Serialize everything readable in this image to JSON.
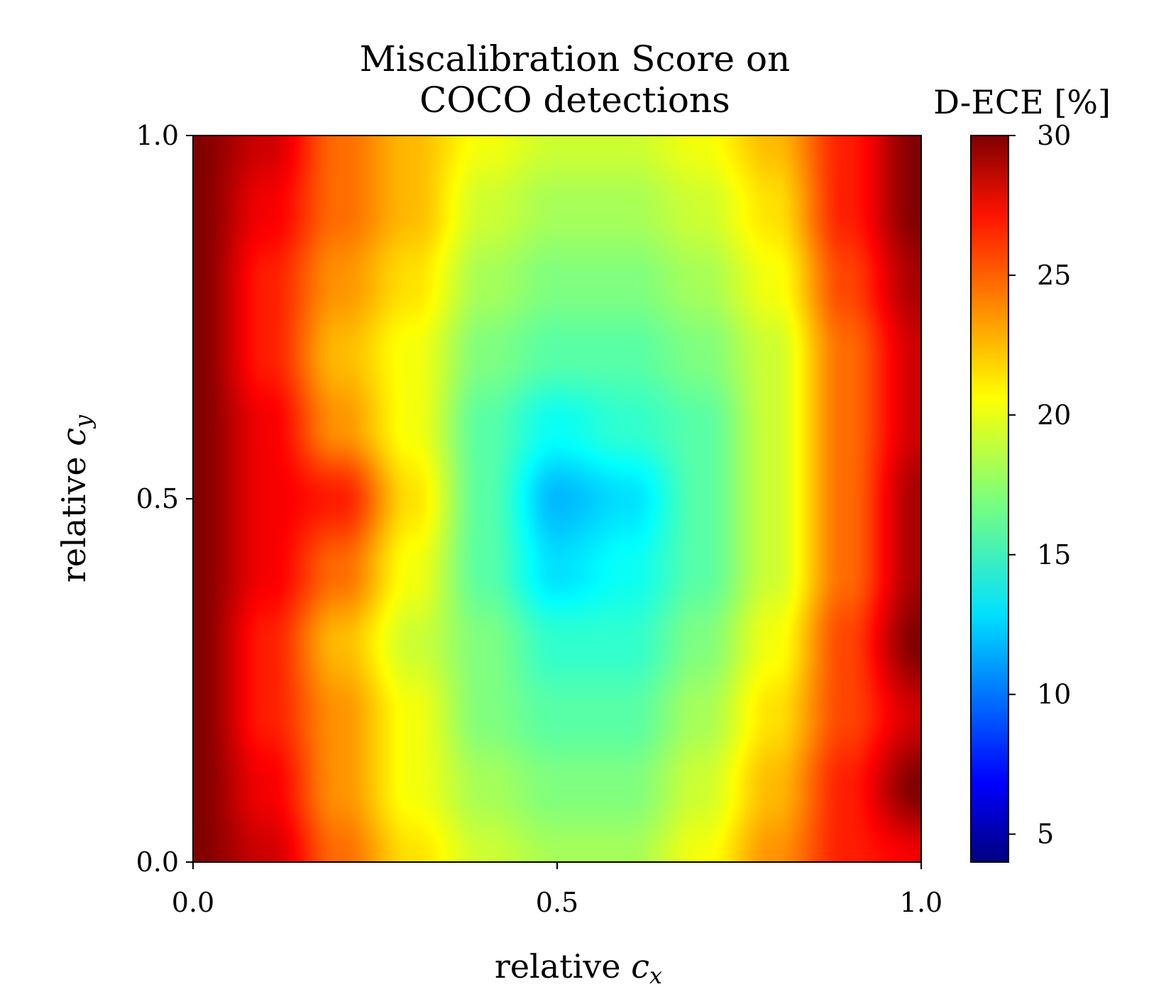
{
  "chart_data": {
    "type": "heatmap",
    "title_lines": [
      "Miscalibration Score on",
      "COCO detections"
    ],
    "xlabel": {
      "text": "relative ",
      "var": "c",
      "sub": "x"
    },
    "ylabel": {
      "text": "relative ",
      "var": "c",
      "sub": "y"
    },
    "xlim": [
      0.0,
      1.0
    ],
    "ylim": [
      0.0,
      1.0
    ],
    "xticks": [
      0.0,
      0.5,
      1.0
    ],
    "xtick_labels": [
      "0.0",
      "0.5",
      "1.0"
    ],
    "yticks": [
      0.0,
      0.5,
      1.0
    ],
    "ytick_labels": [
      "0.0",
      "0.5",
      "1.0"
    ],
    "colormap": "jet",
    "colorbar": {
      "label": "D-ECE [%]",
      "range": [
        4,
        30
      ],
      "ticks": [
        5,
        10,
        15,
        20,
        25,
        30
      ],
      "tick_labels": [
        "5",
        "10",
        "15",
        "20",
        "25",
        "30"
      ]
    },
    "grid": false,
    "x": [
      0.0,
      0.1,
      0.2,
      0.3,
      0.4,
      0.5,
      0.6,
      0.7,
      0.8,
      0.9,
      1.0
    ],
    "y": [
      0.0,
      0.1,
      0.2,
      0.3,
      0.4,
      0.5,
      0.6,
      0.7,
      0.8,
      0.9,
      1.0
    ],
    "z_rows_bottom_to_top": [
      [
        30,
        28,
        24,
        21,
        19,
        18,
        18,
        20,
        23,
        26,
        27
      ],
      [
        30,
        27,
        23,
        20,
        18,
        17,
        17,
        19,
        22,
        26,
        30
      ],
      [
        30,
        26,
        23,
        20,
        17,
        16,
        16,
        18,
        21,
        25,
        28
      ],
      [
        30,
        26,
        22,
        19,
        17,
        15,
        15,
        17,
        20,
        25,
        30
      ],
      [
        30,
        27,
        24,
        20,
        16,
        13,
        14,
        16,
        19,
        24,
        29
      ],
      [
        30,
        27,
        26,
        21,
        16,
        12,
        13,
        16,
        19,
        24,
        29
      ],
      [
        30,
        27,
        23,
        20,
        16,
        14,
        15,
        16,
        19,
        24,
        28
      ],
      [
        30,
        26,
        22,
        20,
        17,
        16,
        16,
        17,
        19,
        24,
        28
      ],
      [
        30,
        26,
        23,
        21,
        18,
        17,
        17,
        18,
        20,
        25,
        29
      ],
      [
        30,
        27,
        24,
        22,
        19,
        18,
        18,
        19,
        21,
        26,
        30
      ],
      [
        30,
        28,
        24,
        22,
        20,
        19,
        19,
        20,
        22,
        26,
        30
      ]
    ]
  }
}
